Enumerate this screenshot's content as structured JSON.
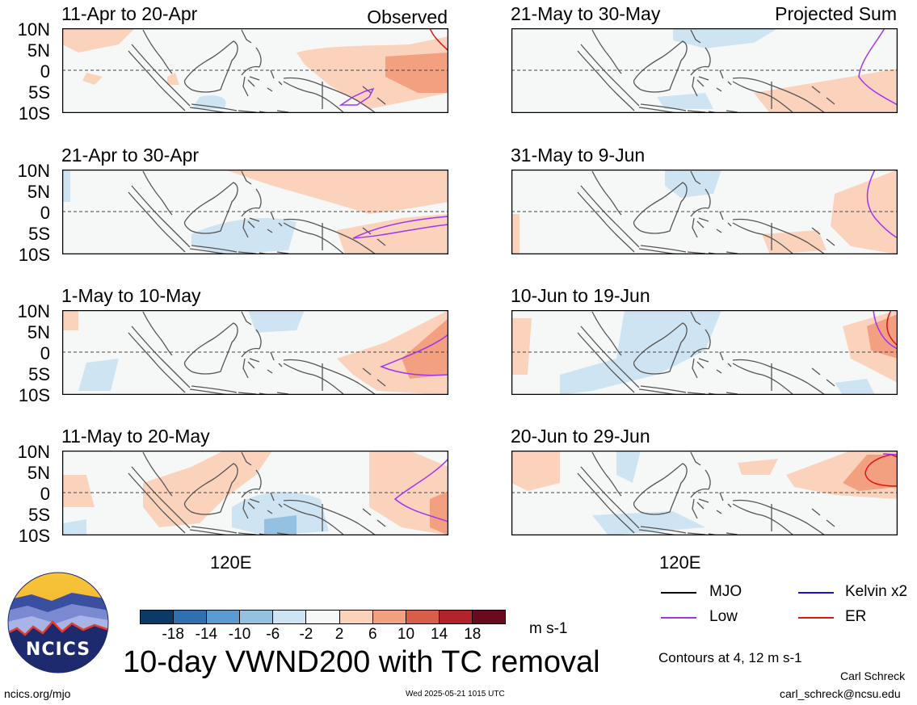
{
  "panels": [
    {
      "title": "11-Apr to 20-Apr",
      "label": "Observed"
    },
    {
      "title": "21-May to 30-May",
      "label": "Projected Sum"
    },
    {
      "title": "21-Apr to 30-Apr",
      "label": ""
    },
    {
      "title": "31-May to 9-Jun",
      "label": ""
    },
    {
      "title": "1-May to 10-May",
      "label": ""
    },
    {
      "title": "10-Jun to 19-Jun",
      "label": ""
    },
    {
      "title": "11-May to 20-May",
      "label": ""
    },
    {
      "title": "20-Jun to 29-Jun",
      "label": ""
    }
  ],
  "lat_labels": [
    "10N",
    "5N",
    "0",
    "5S",
    "10S"
  ],
  "lon_label": "120E",
  "colorbar": {
    "ticks": [
      "-18",
      "-14",
      "-10",
      "-6",
      "-2",
      "2",
      "6",
      "10",
      "14",
      "18"
    ],
    "colors": [
      "#0b3a66",
      "#2f70b0",
      "#5b9bd1",
      "#94c1e2",
      "#cfe4f2",
      "#f6f8f8",
      "#fbd3bd",
      "#f2a07f",
      "#d95e49",
      "#b1222d",
      "#6b0a1e"
    ],
    "units": "m s-1"
  },
  "legend": {
    "items": [
      {
        "label": "MJO",
        "color": "#000000"
      },
      {
        "label": "Kelvin x2",
        "color": "#1a10d6"
      },
      {
        "label": "Low",
        "color": "#a035f0"
      },
      {
        "label": "ER",
        "color": "#e01515"
      }
    ],
    "contours_note": "Contours at 4, 12 m s-1"
  },
  "main_title": "10-day VWND200 with TC removal",
  "logo_text": "NCICS",
  "footer": {
    "url": "ncics.org/mjo",
    "timestamp": "Wed 2025-05-21 1015 UTC",
    "author": "Carl Schreck",
    "email": "carl_schreck@ncsu.edu"
  }
}
